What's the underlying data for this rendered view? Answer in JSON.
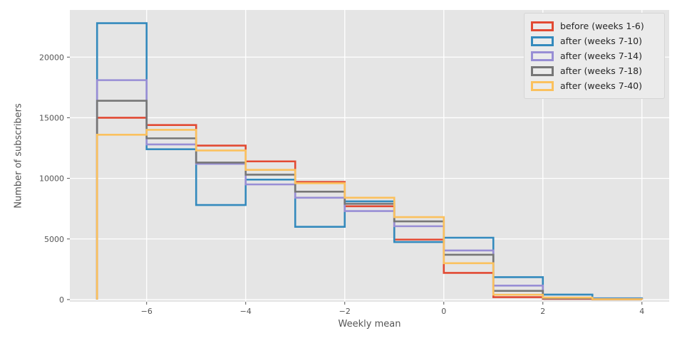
{
  "chart_data": {
    "type": "step-histogram",
    "title": "",
    "xlabel": "Weekly mean",
    "ylabel": "Number of subscribers",
    "grid": true,
    "legend_position": "upper right",
    "bin_edges": [
      -7,
      -6,
      -5,
      -4,
      -3,
      -2,
      -1,
      0,
      1,
      2,
      3,
      4
    ],
    "x_ticks": [
      -6,
      -4,
      -2,
      0,
      2,
      4
    ],
    "x_tick_labels": [
      "−6",
      "−4",
      "−2",
      "0",
      "2",
      "4"
    ],
    "y_ticks": [
      0,
      5000,
      10000,
      15000,
      20000
    ],
    "y_tick_labels": [
      "0",
      "5000",
      "10000",
      "15000",
      "20000"
    ],
    "xlim": [
      -7.55,
      4.55
    ],
    "ylim": [
      -180,
      23890
    ],
    "series": [
      {
        "name": "before (weeks 1-6)",
        "color": "#E24A33",
        "values": [
          15000,
          14400,
          12700,
          11400,
          9700,
          7700,
          4950,
          2200,
          200,
          60,
          20
        ]
      },
      {
        "name": "after (weeks 7-10)",
        "color": "#348ABD",
        "values": [
          22800,
          12400,
          7800,
          9900,
          6000,
          8100,
          4750,
          5100,
          1850,
          410,
          100
        ]
      },
      {
        "name": "after (weeks 7-14)",
        "color": "#988ED5",
        "values": [
          18100,
          12800,
          11200,
          9500,
          8400,
          7300,
          6050,
          4050,
          1150,
          150,
          50
        ]
      },
      {
        "name": "after (weeks 7-18)",
        "color": "#777777",
        "values": [
          16400,
          13300,
          11300,
          10300,
          8900,
          7900,
          6450,
          3700,
          720,
          100,
          30
        ]
      },
      {
        "name": "after (weeks 7-40)",
        "color": "#FBC15E",
        "values": [
          13600,
          14000,
          12300,
          10700,
          9600,
          8400,
          6800,
          3000,
          400,
          160,
          30
        ]
      }
    ],
    "style": {
      "panel_bg": "#e5e5e5",
      "grid_color": "#ffffff",
      "tick_color": "#555555",
      "label_color": "#555555",
      "legend_text_color": "#262626",
      "line_width": 2.6
    }
  }
}
